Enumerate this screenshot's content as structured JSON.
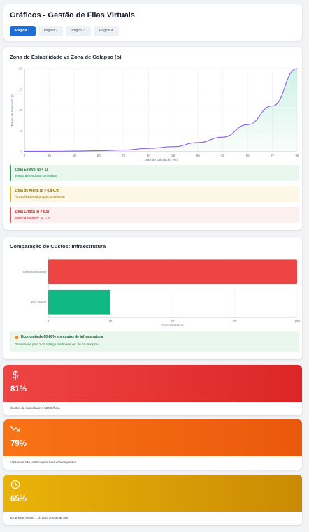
{
  "header": {
    "title": "Gráficos - Gestão de Filas Virtuais",
    "tabs": [
      "Página 1",
      "Página 2",
      "Página 3",
      "Página 4"
    ]
  },
  "stability": {
    "title": "Zona de Estabilidade vs Zona de Colapso (ρ)",
    "zones": [
      {
        "title": "Zona Estável (ρ < 1)",
        "desc": "Tempo de resposta controlado"
      },
      {
        "title": "Zona de Alerta (ρ > 0.8-0.9)",
        "desc": "Atraso fila virtual proporcionalmente"
      },
      {
        "title": "Zona Crítica (ρ > 0.9)",
        "desc": "Sistema instável - W → ∞"
      }
    ]
  },
  "costs": {
    "title": "Comparação de Custos: Infraestrutura",
    "note_icon": "fire-icon",
    "note_title": "Economia de 60-80% em custos de infraestrutura",
    "note_desc": "Dimensione para 2-3x tráfego médio em vez de 10-20x pico"
  },
  "stats": [
    {
      "icon": "dollar-icon",
      "value": "81%",
      "desc": "Custos de inatividade > $300k/hora",
      "color": "#dc2626"
    },
    {
      "icon": "trend-down-icon",
      "value": "79%",
      "desc": "Visitantes não voltam após baixo desempenho",
      "color": "#ea580c"
    },
    {
      "icon": "clock-icon",
      "value": "65%",
      "desc": "Empresas levam > 1h para consertar site",
      "color": "#ca8a04"
    }
  ],
  "chart_data": [
    {
      "type": "area",
      "title": "",
      "xlabel": "Taxa de Utilização (%)",
      "ylabel": "Tempo de Resposta (s)",
      "categories": [
        "0",
        "20",
        "40",
        "60",
        "70",
        "80",
        "85",
        "90",
        "92",
        "95",
        "97",
        "98"
      ],
      "series": [
        {
          "values": [
            0.1,
            0.1,
            0.15,
            0.25,
            0.4,
            0.8,
            1.2,
            2.2,
            3.5,
            6.5,
            11,
            20
          ]
        }
      ],
      "ylim": [
        0,
        20
      ],
      "yticks": [
        0,
        5,
        10,
        15,
        20
      ],
      "grid": true,
      "line_color": "#8b5cf6"
    },
    {
      "type": "bar",
      "orientation": "horizontal",
      "categories": [
        "Over-provisioning",
        "Fila Virtual"
      ],
      "values": [
        100,
        25
      ],
      "colors": [
        "#ef4444",
        "#10b981"
      ],
      "xlabel": "Custo Relativo",
      "xlim": [
        0,
        100
      ],
      "xticks": [
        0,
        25,
        50,
        75,
        100
      ],
      "grid": true
    }
  ]
}
